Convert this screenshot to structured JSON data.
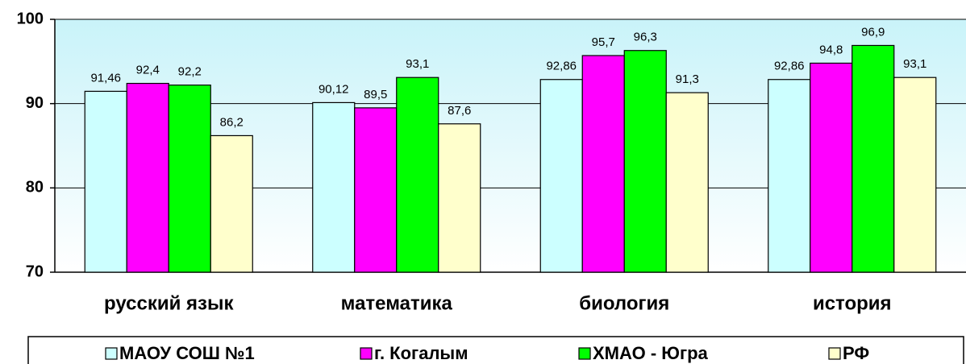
{
  "chart_data": {
    "type": "bar",
    "categories": [
      "русский язык",
      "математика",
      "биология",
      "история"
    ],
    "series": [
      {
        "name": "МАОУ СОШ №1",
        "color": "#ccffff",
        "values": [
          91.46,
          90.12,
          92.86,
          92.86
        ],
        "value_labels": [
          "91,46",
          "90,12",
          "92,86",
          "92,86"
        ]
      },
      {
        "name": "г. Когалым",
        "color": "#ff00ff",
        "values": [
          92.4,
          89.5,
          95.7,
          94.8
        ],
        "value_labels": [
          "92,4",
          "89,5",
          "95,7",
          "94,8"
        ]
      },
      {
        "name": "ХМАО - Югра",
        "color": "#00ff00",
        "values": [
          92.2,
          93.1,
          96.3,
          96.9
        ],
        "value_labels": [
          "92,2",
          "93,1",
          "96,3",
          "96,9"
        ]
      },
      {
        "name": "РФ",
        "color": "#ffffcc",
        "values": [
          86.2,
          87.6,
          91.3,
          93.1
        ],
        "value_labels": [
          "86,2",
          "87,6",
          "91,3",
          "93,1"
        ]
      }
    ],
    "ylim": [
      70,
      100
    ],
    "yticks": [
      70,
      80,
      90,
      100
    ],
    "grid": true,
    "legend": "bottom"
  }
}
